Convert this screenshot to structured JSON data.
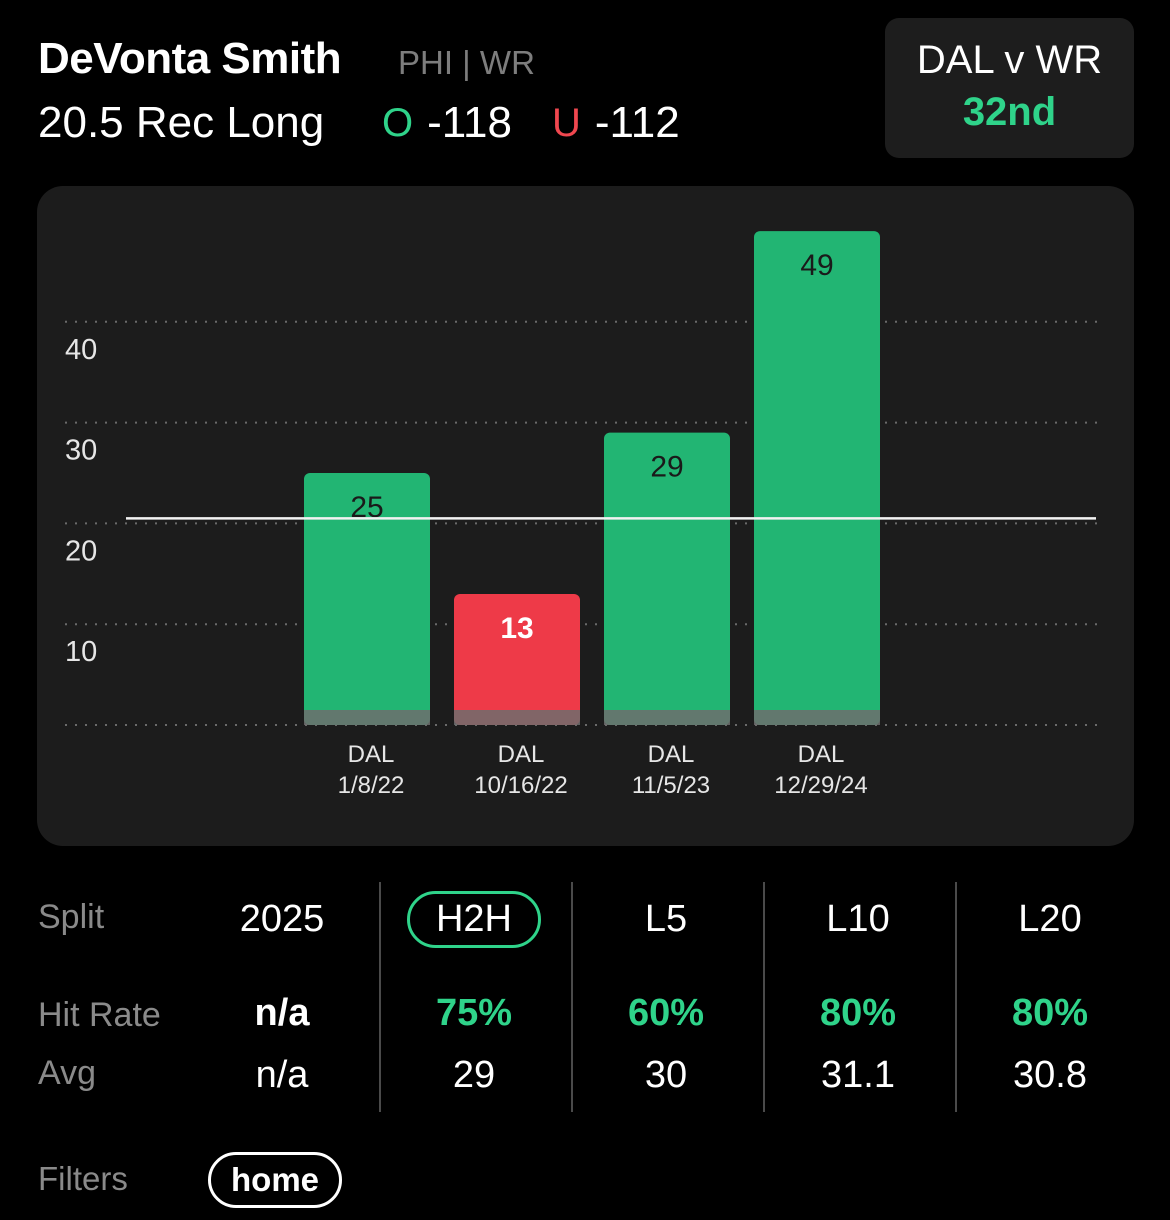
{
  "header": {
    "player_name": "DeVonta Smith",
    "team_position": "PHI | WR",
    "prop_line": "20.5 Rec Long",
    "over": {
      "symbol": "O",
      "odds": "-118",
      "color": "#2fd38a"
    },
    "under": {
      "symbol": "U",
      "odds": "-112",
      "color": "#f0474f"
    }
  },
  "matchup": {
    "title": "DAL v WR",
    "rank": "32nd"
  },
  "chart_data": {
    "type": "bar",
    "categories": [
      {
        "team": "DAL",
        "date": "1/8/22"
      },
      {
        "team": "DAL",
        "date": "10/16/22"
      },
      {
        "team": "DAL",
        "date": "11/5/23"
      },
      {
        "team": "DAL",
        "date": "12/29/24"
      }
    ],
    "values": [
      25,
      13,
      29,
      49
    ],
    "line": 20.5,
    "yticks": [
      10,
      20,
      30,
      40
    ],
    "ylim": [
      0,
      49
    ],
    "grid": true,
    "colors": {
      "over": "#22b573",
      "under": "#ee3a48"
    }
  },
  "splits": {
    "row_labels": {
      "split": "Split",
      "hit_rate": "Hit Rate",
      "avg": "Avg"
    },
    "columns": [
      {
        "label": "2025",
        "hit_rate": "n/a",
        "avg": "n/a",
        "selected": false,
        "green": false
      },
      {
        "label": "H2H",
        "hit_rate": "75%",
        "avg": "29",
        "selected": true,
        "green": true
      },
      {
        "label": "L5",
        "hit_rate": "60%",
        "avg": "30",
        "selected": false,
        "green": true
      },
      {
        "label": "L10",
        "hit_rate": "80%",
        "avg": "31.1",
        "selected": false,
        "green": true
      },
      {
        "label": "L20",
        "hit_rate": "80%",
        "avg": "30.8",
        "selected": false,
        "green": true
      }
    ]
  },
  "filters": {
    "label": "Filters",
    "chips": [
      "home"
    ]
  }
}
